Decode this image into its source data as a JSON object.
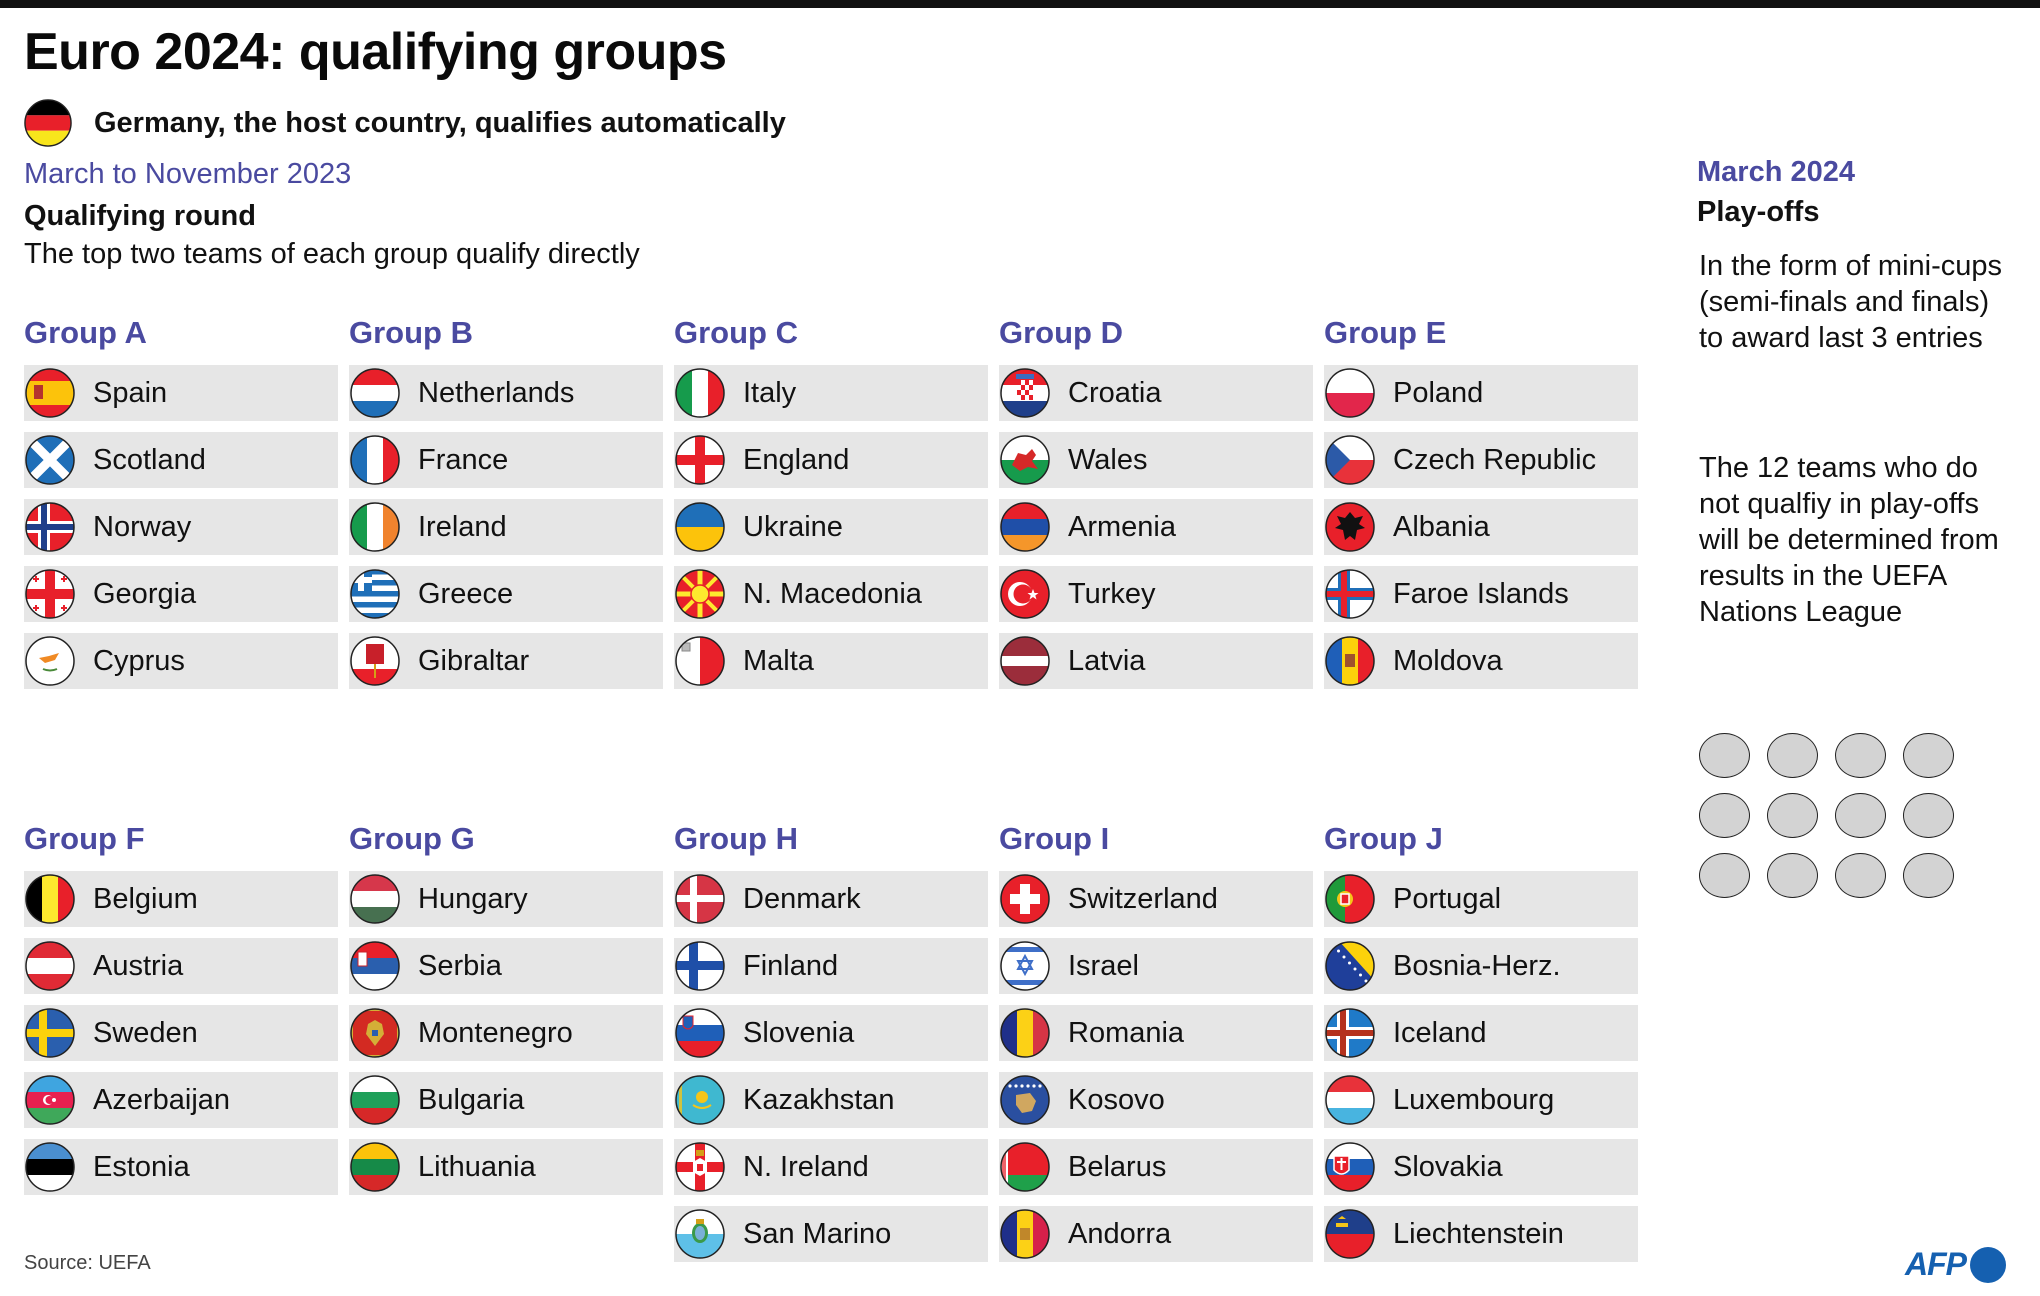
{
  "header": {
    "title": "Euro 2024: qualifying groups",
    "host_note": "Germany, the host country, qualifies automatically",
    "host_flag": "germany-flag-icon"
  },
  "qualifying": {
    "period": "March to November 2023",
    "heading": "Qualifying round",
    "description": "The top two teams of each group qualify directly"
  },
  "playoffs": {
    "period": "March 2024",
    "heading": "Play-offs",
    "description_lines": [
      "In the form of mini-cups",
      "(semi-finals and finals)",
      "to award last 3 entries"
    ],
    "note_lines": [
      "The 12 teams who do",
      "not qualfiy in play-offs",
      "will be determined from",
      "results in the UEFA",
      "Nations League"
    ],
    "slot_count": 12
  },
  "groups": [
    {
      "label": "Group A",
      "teams": [
        {
          "name": "Spain",
          "flag": "spain"
        },
        {
          "name": "Scotland",
          "flag": "scotland"
        },
        {
          "name": "Norway",
          "flag": "norway"
        },
        {
          "name": "Georgia",
          "flag": "georgia"
        },
        {
          "name": "Cyprus",
          "flag": "cyprus"
        }
      ]
    },
    {
      "label": "Group B",
      "teams": [
        {
          "name": "Netherlands",
          "flag": "netherlands"
        },
        {
          "name": "France",
          "flag": "france"
        },
        {
          "name": "Ireland",
          "flag": "ireland"
        },
        {
          "name": "Greece",
          "flag": "greece"
        },
        {
          "name": "Gibraltar",
          "flag": "gibraltar"
        }
      ]
    },
    {
      "label": "Group C",
      "teams": [
        {
          "name": "Italy",
          "flag": "italy"
        },
        {
          "name": "England",
          "flag": "england"
        },
        {
          "name": "Ukraine",
          "flag": "ukraine"
        },
        {
          "name": "N. Macedonia",
          "flag": "north-macedonia"
        },
        {
          "name": "Malta",
          "flag": "malta"
        }
      ]
    },
    {
      "label": "Group D",
      "teams": [
        {
          "name": "Croatia",
          "flag": "croatia"
        },
        {
          "name": "Wales",
          "flag": "wales"
        },
        {
          "name": "Armenia",
          "flag": "armenia"
        },
        {
          "name": "Turkey",
          "flag": "turkey"
        },
        {
          "name": "Latvia",
          "flag": "latvia"
        }
      ]
    },
    {
      "label": "Group E",
      "teams": [
        {
          "name": "Poland",
          "flag": "poland"
        },
        {
          "name": "Czech Republic",
          "flag": "czech-republic"
        },
        {
          "name": "Albania",
          "flag": "albania"
        },
        {
          "name": "Faroe Islands",
          "flag": "faroe-islands"
        },
        {
          "name": "Moldova",
          "flag": "moldova"
        }
      ]
    },
    {
      "label": "Group F",
      "teams": [
        {
          "name": "Belgium",
          "flag": "belgium"
        },
        {
          "name": "Austria",
          "flag": "austria"
        },
        {
          "name": "Sweden",
          "flag": "sweden"
        },
        {
          "name": "Azerbaijan",
          "flag": "azerbaijan"
        },
        {
          "name": "Estonia",
          "flag": "estonia"
        }
      ]
    },
    {
      "label": "Group G",
      "teams": [
        {
          "name": "Hungary",
          "flag": "hungary"
        },
        {
          "name": "Serbia",
          "flag": "serbia"
        },
        {
          "name": "Montenegro",
          "flag": "montenegro"
        },
        {
          "name": "Bulgaria",
          "flag": "bulgaria"
        },
        {
          "name": "Lithuania",
          "flag": "lithuania"
        }
      ]
    },
    {
      "label": "Group H",
      "teams": [
        {
          "name": "Denmark",
          "flag": "denmark"
        },
        {
          "name": "Finland",
          "flag": "finland"
        },
        {
          "name": "Slovenia",
          "flag": "slovenia"
        },
        {
          "name": "Kazakhstan",
          "flag": "kazakhstan"
        },
        {
          "name": "N. Ireland",
          "flag": "northern-ireland"
        },
        {
          "name": "San Marino",
          "flag": "san-marino"
        }
      ]
    },
    {
      "label": "Group I",
      "teams": [
        {
          "name": "Switzerland",
          "flag": "switzerland"
        },
        {
          "name": "Israel",
          "flag": "israel"
        },
        {
          "name": "Romania",
          "flag": "romania"
        },
        {
          "name": "Kosovo",
          "flag": "kosovo"
        },
        {
          "name": "Belarus",
          "flag": "belarus"
        },
        {
          "name": "Andorra",
          "flag": "andorra"
        }
      ]
    },
    {
      "label": "Group J",
      "teams": [
        {
          "name": "Portugal",
          "flag": "portugal"
        },
        {
          "name": "Bosnia-Herz.",
          "flag": "bosnia-herzegovina"
        },
        {
          "name": "Iceland",
          "flag": "iceland"
        },
        {
          "name": "Luxembourg",
          "flag": "luxembourg"
        },
        {
          "name": "Slovakia",
          "flag": "slovakia"
        },
        {
          "name": "Liechtenstein",
          "flag": "liechtenstein"
        }
      ]
    }
  ],
  "footer": {
    "source": "Source: UEFA",
    "logo": "AFP"
  },
  "colors": {
    "accent": "#4a4aa0",
    "row_bg": "#e6e6e6",
    "slot_fill": "#d3d3d3",
    "afp_blue": "#1560b0"
  }
}
